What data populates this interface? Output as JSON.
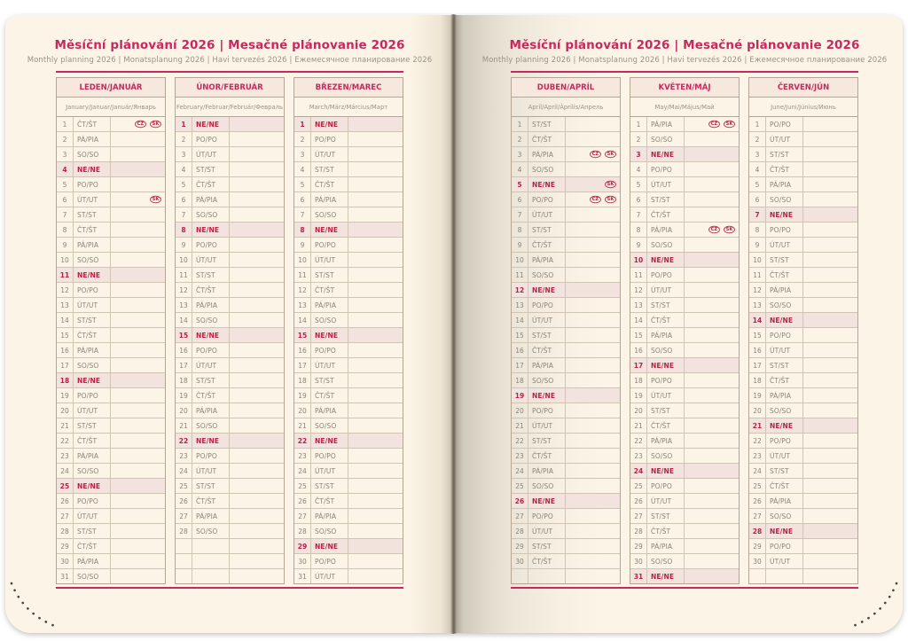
{
  "colors": {
    "accent": "#c9285f",
    "sunday": "#bb2143",
    "paper": "#fcf4e6"
  },
  "sunday_code": "NE/NE",
  "pages": [
    {
      "title": "Měsíční plánování 2026 | Mesačné plánovanie 2026",
      "subtitle": "Monthly planning 2026 | Monatsplanung 2026 | Havi tervezés 2026 | Ежемесячное планирование 2026",
      "months": [
        {
          "title": "LEDEN/JANUÁR",
          "subtitle": "January/Januar/Január/Январь",
          "rows": [
            [
              1,
              "ČT/ŠT",
              [
                "CZ",
                "SK"
              ]
            ],
            [
              2,
              "PÁ/PIA"
            ],
            [
              3,
              "SO/SO"
            ],
            [
              4,
              "NE/NE"
            ],
            [
              5,
              "PO/PO"
            ],
            [
              6,
              "ÚT/UT",
              [
                "SK"
              ]
            ],
            [
              7,
              "ST/ST"
            ],
            [
              8,
              "ČT/ŠT"
            ],
            [
              9,
              "PÁ/PIA"
            ],
            [
              10,
              "SO/SO"
            ],
            [
              11,
              "NE/NE"
            ],
            [
              12,
              "PO/PO"
            ],
            [
              13,
              "ÚT/UT"
            ],
            [
              14,
              "ST/ST"
            ],
            [
              15,
              "ČT/ŠT"
            ],
            [
              16,
              "PÁ/PIA"
            ],
            [
              17,
              "SO/SO"
            ],
            [
              18,
              "NE/NE"
            ],
            [
              19,
              "PO/PO"
            ],
            [
              20,
              "ÚT/UT"
            ],
            [
              21,
              "ST/ST"
            ],
            [
              22,
              "ČT/ŠT"
            ],
            [
              23,
              "PÁ/PIA"
            ],
            [
              24,
              "SO/SO"
            ],
            [
              25,
              "NE/NE"
            ],
            [
              26,
              "PO/PO"
            ],
            [
              27,
              "ÚT/UT"
            ],
            [
              28,
              "ST/ST"
            ],
            [
              29,
              "ČT/ŠT"
            ],
            [
              30,
              "PÁ/PIA"
            ],
            [
              31,
              "SO/SO"
            ]
          ]
        },
        {
          "title": "ÚNOR/FEBRUÁR",
          "subtitle": "February/Februar/Február/Февраль",
          "rows": [
            [
              1,
              "NE/NE"
            ],
            [
              2,
              "PO/PO"
            ],
            [
              3,
              "ÚT/UT"
            ],
            [
              4,
              "ST/ST"
            ],
            [
              5,
              "ČT/ŠT"
            ],
            [
              6,
              "PÁ/PIA"
            ],
            [
              7,
              "SO/SO"
            ],
            [
              8,
              "NE/NE"
            ],
            [
              9,
              "PO/PO"
            ],
            [
              10,
              "ÚT/UT"
            ],
            [
              11,
              "ST/ST"
            ],
            [
              12,
              "ČT/ŠT"
            ],
            [
              13,
              "PÁ/PIA"
            ],
            [
              14,
              "SO/SO"
            ],
            [
              15,
              "NE/NE"
            ],
            [
              16,
              "PO/PO"
            ],
            [
              17,
              "ÚT/UT"
            ],
            [
              18,
              "ST/ST"
            ],
            [
              19,
              "ČT/ŠT"
            ],
            [
              20,
              "PÁ/PIA"
            ],
            [
              21,
              "SO/SO"
            ],
            [
              22,
              "NE/NE"
            ],
            [
              23,
              "PO/PO"
            ],
            [
              24,
              "ÚT/UT"
            ],
            [
              25,
              "ST/ST"
            ],
            [
              26,
              "ČT/ŠT"
            ],
            [
              27,
              "PÁ/PIA"
            ],
            [
              28,
              "SO/SO"
            ],
            null,
            null,
            null
          ]
        },
        {
          "title": "BŘEZEN/MAREC",
          "subtitle": "March/März/Március/Март",
          "rows": [
            [
              1,
              "NE/NE"
            ],
            [
              2,
              "PO/PO"
            ],
            [
              3,
              "ÚT/UT"
            ],
            [
              4,
              "ST/ST"
            ],
            [
              5,
              "ČT/ŠT"
            ],
            [
              6,
              "PÁ/PIA"
            ],
            [
              7,
              "SO/SO"
            ],
            [
              8,
              "NE/NE"
            ],
            [
              9,
              "PO/PO"
            ],
            [
              10,
              "ÚT/UT"
            ],
            [
              11,
              "ST/ST"
            ],
            [
              12,
              "ČT/ŠT"
            ],
            [
              13,
              "PÁ/PIA"
            ],
            [
              14,
              "SO/SO"
            ],
            [
              15,
              "NE/NE"
            ],
            [
              16,
              "PO/PO"
            ],
            [
              17,
              "ÚT/UT"
            ],
            [
              18,
              "ST/ST"
            ],
            [
              19,
              "ČT/ŠT"
            ],
            [
              20,
              "PÁ/PIA"
            ],
            [
              21,
              "SO/SO"
            ],
            [
              22,
              "NE/NE"
            ],
            [
              23,
              "PO/PO"
            ],
            [
              24,
              "ÚT/UT"
            ],
            [
              25,
              "ST/ST"
            ],
            [
              26,
              "ČT/ŠT"
            ],
            [
              27,
              "PÁ/PIA"
            ],
            [
              28,
              "SO/SO"
            ],
            [
              29,
              "NE/NE"
            ],
            [
              30,
              "PO/PO"
            ],
            [
              31,
              "ÚT/UT"
            ]
          ]
        }
      ]
    },
    {
      "title": "Měsíční plánování 2026 | Mesačné plánovanie 2026",
      "subtitle": "Monthly planning 2026 | Monatsplanung 2026 | Havi tervezés 2026 | Ежемесячное планирование 2026",
      "months": [
        {
          "title": "DUBEN/APRÍL",
          "subtitle": "April/April/Április/Апрель",
          "rows": [
            [
              1,
              "ST/ST"
            ],
            [
              2,
              "ČT/ŠT"
            ],
            [
              3,
              "PÁ/PIA",
              [
                "CZ",
                "SK"
              ]
            ],
            [
              4,
              "SO/SO"
            ],
            [
              5,
              "NE/NE",
              [
                "SK"
              ]
            ],
            [
              6,
              "PO/PO",
              [
                "CZ",
                "SK"
              ]
            ],
            [
              7,
              "ÚT/UT"
            ],
            [
              8,
              "ST/ST"
            ],
            [
              9,
              "ČT/ŠT"
            ],
            [
              10,
              "PÁ/PIA"
            ],
            [
              11,
              "SO/SO"
            ],
            [
              12,
              "NE/NE"
            ],
            [
              13,
              "PO/PO"
            ],
            [
              14,
              "ÚT/UT"
            ],
            [
              15,
              "ST/ST"
            ],
            [
              16,
              "ČT/ŠT"
            ],
            [
              17,
              "PÁ/PIA"
            ],
            [
              18,
              "SO/SO"
            ],
            [
              19,
              "NE/NE"
            ],
            [
              20,
              "PO/PO"
            ],
            [
              21,
              "ÚT/UT"
            ],
            [
              22,
              "ST/ST"
            ],
            [
              23,
              "ČT/ŠT"
            ],
            [
              24,
              "PÁ/PIA"
            ],
            [
              25,
              "SO/SO"
            ],
            [
              26,
              "NE/NE"
            ],
            [
              27,
              "PO/PO"
            ],
            [
              28,
              "ÚT/UT"
            ],
            [
              29,
              "ST/ST"
            ],
            [
              30,
              "ČT/ŠT"
            ],
            null
          ]
        },
        {
          "title": "KVĚTEN/MÁJ",
          "subtitle": "May/Mai/Május/Май",
          "rows": [
            [
              1,
              "PÁ/PIA",
              [
                "CZ",
                "SK"
              ]
            ],
            [
              2,
              "SO/SO"
            ],
            [
              3,
              "NE/NE"
            ],
            [
              4,
              "PO/PO"
            ],
            [
              5,
              "ÚT/UT"
            ],
            [
              6,
              "ST/ST"
            ],
            [
              7,
              "ČT/ŠT"
            ],
            [
              8,
              "PÁ/PIA",
              [
                "CZ",
                "SK"
              ]
            ],
            [
              9,
              "SO/SO"
            ],
            [
              10,
              "NE/NE"
            ],
            [
              11,
              "PO/PO"
            ],
            [
              12,
              "ÚT/UT"
            ],
            [
              13,
              "ST/ST"
            ],
            [
              14,
              "ČT/ŠT"
            ],
            [
              15,
              "PÁ/PIA"
            ],
            [
              16,
              "SO/SO"
            ],
            [
              17,
              "NE/NE"
            ],
            [
              18,
              "PO/PO"
            ],
            [
              19,
              "ÚT/UT"
            ],
            [
              20,
              "ST/ST"
            ],
            [
              21,
              "ČT/ŠT"
            ],
            [
              22,
              "PÁ/PIA"
            ],
            [
              23,
              "SO/SO"
            ],
            [
              24,
              "NE/NE"
            ],
            [
              25,
              "PO/PO"
            ],
            [
              26,
              "ÚT/UT"
            ],
            [
              27,
              "ST/ST"
            ],
            [
              28,
              "ČT/ŠT"
            ],
            [
              29,
              "PÁ/PIA"
            ],
            [
              30,
              "SO/SO"
            ],
            [
              31,
              "NE/NE"
            ]
          ]
        },
        {
          "title": "ČERVEN/JÚN",
          "subtitle": "June/Juni/Június/Июнь",
          "rows": [
            [
              1,
              "PO/PO"
            ],
            [
              2,
              "ÚT/UT"
            ],
            [
              3,
              "ST/ST"
            ],
            [
              4,
              "ČT/ŠT"
            ],
            [
              5,
              "PÁ/PIA"
            ],
            [
              6,
              "SO/SO"
            ],
            [
              7,
              "NE/NE"
            ],
            [
              8,
              "PO/PO"
            ],
            [
              9,
              "ÚT/UT"
            ],
            [
              10,
              "ST/ST"
            ],
            [
              11,
              "ČT/ŠT"
            ],
            [
              12,
              "PÁ/PIA"
            ],
            [
              13,
              "SO/SO"
            ],
            [
              14,
              "NE/NE"
            ],
            [
              15,
              "PO/PO"
            ],
            [
              16,
              "ÚT/UT"
            ],
            [
              17,
              "ST/ST"
            ],
            [
              18,
              "ČT/ŠT"
            ],
            [
              19,
              "PÁ/PIA"
            ],
            [
              20,
              "SO/SO"
            ],
            [
              21,
              "NE/NE"
            ],
            [
              22,
              "PO/PO"
            ],
            [
              23,
              "ÚT/UT"
            ],
            [
              24,
              "ST/ST"
            ],
            [
              25,
              "ČT/ŠT"
            ],
            [
              26,
              "PÁ/PIA"
            ],
            [
              27,
              "SO/SO"
            ],
            [
              28,
              "NE/NE"
            ],
            [
              29,
              "PO/PO"
            ],
            [
              30,
              "ÚT/UT"
            ],
            null
          ]
        }
      ]
    }
  ]
}
